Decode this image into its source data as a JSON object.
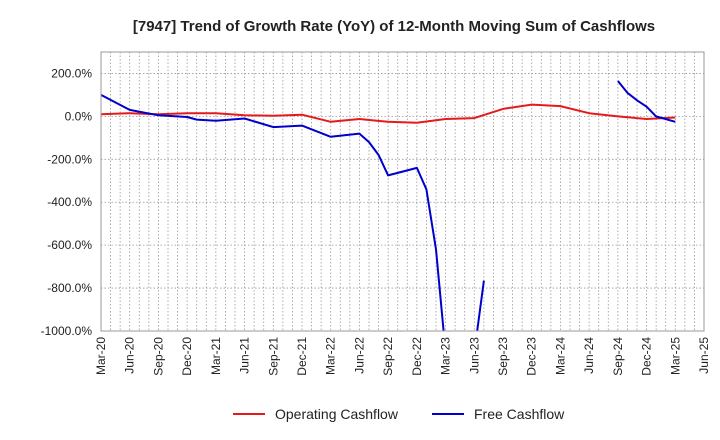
{
  "chart_data": {
    "type": "line",
    "title": "[7947]  Trend of Growth Rate (YoY) of 12-Month Moving Sum of Cashflows",
    "xlabel": "",
    "ylabel": "",
    "ylim": [
      -1000,
      300
    ],
    "yticks": [
      200,
      0,
      -200,
      -400,
      -600,
      -800,
      -1000
    ],
    "ytick_labels": [
      "200.0%",
      "0.0%",
      "-200.0%",
      "-400.0%",
      "-600.0%",
      "-800.0%",
      "-1000.0%"
    ],
    "xtick_labels": [
      "Mar-20",
      "Jun-20",
      "Sep-20",
      "Dec-20",
      "Mar-21",
      "Jun-21",
      "Sep-21",
      "Dec-21",
      "Mar-22",
      "Jun-22",
      "Sep-22",
      "Dec-22",
      "Mar-23",
      "Jun-23",
      "Sep-23",
      "Dec-23",
      "Mar-24",
      "Jun-24",
      "Sep-24",
      "Dec-24",
      "Mar-25",
      "Jun-25"
    ],
    "grid": true,
    "legend_position": "bottom",
    "series": [
      {
        "name": "Operating Cashflow",
        "color": "#e41a1c",
        "points": [
          [
            "Mar-20",
            10
          ],
          [
            "Jun-20",
            15
          ],
          [
            "Sep-20",
            10
          ],
          [
            "Dec-20",
            15
          ],
          [
            "Mar-21",
            15
          ],
          [
            "Jun-21",
            5
          ],
          [
            "Sep-21",
            3
          ],
          [
            "Dec-21",
            8
          ],
          [
            "Mar-22",
            -25
          ],
          [
            "Jun-22",
            -12
          ],
          [
            "Sep-22",
            -25
          ],
          [
            "Dec-22",
            -30
          ],
          [
            "Mar-23",
            -12
          ],
          [
            "Jun-23",
            -8
          ],
          [
            "Sep-23",
            35
          ],
          [
            "Dec-23",
            55
          ],
          [
            "Mar-24",
            48
          ],
          [
            "Jun-24",
            15
          ],
          [
            "Sep-24",
            0
          ],
          [
            "Dec-24",
            -12
          ],
          [
            "Mar-25",
            -5
          ]
        ]
      },
      {
        "name": "Free Cashflow",
        "color": "#0000cc",
        "points": [
          [
            "Mar-20",
            100
          ],
          [
            "Jun-20",
            30
          ],
          [
            "Sep-20",
            5
          ],
          [
            "Dec-20",
            -3
          ],
          [
            "Jan-21",
            -15
          ],
          [
            "Mar-21",
            -20
          ],
          [
            "Jun-21",
            -10
          ],
          [
            "Sep-21",
            -50
          ],
          [
            "Dec-21",
            -43
          ],
          [
            "Mar-22",
            -95
          ],
          [
            "Jun-22",
            -80
          ],
          [
            "Jul-22",
            -120
          ],
          [
            "Aug-22",
            -180
          ],
          [
            "Sep-22",
            -275
          ],
          [
            "Dec-22",
            -240
          ],
          [
            "Jan-23",
            -340
          ],
          [
            "Feb-23",
            -620
          ],
          [
            "Mar-23",
            -1100
          ],
          null,
          [
            "Jun-23",
            -1100
          ],
          [
            "Jul-23",
            -765
          ],
          null,
          [
            "Sep-24",
            165
          ],
          [
            "Oct-24",
            110
          ],
          [
            "Nov-24",
            75
          ],
          [
            "Dec-24",
            45
          ],
          [
            "Jan-25",
            0
          ],
          [
            "Mar-25",
            -25
          ]
        ]
      }
    ]
  }
}
